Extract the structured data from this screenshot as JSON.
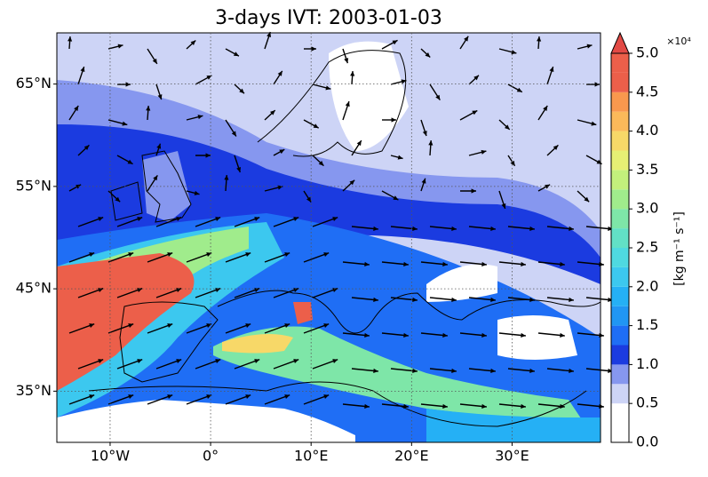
{
  "title": "3-days IVT: 2003-01-03",
  "map": {
    "xlim": [
      -15.3,
      38.8
    ],
    "ylim": [
      30,
      70
    ],
    "xticks": [
      {
        "value": -10,
        "label": "10°W"
      },
      {
        "value": 0,
        "label": "0°"
      },
      {
        "value": 10,
        "label": "10°E"
      },
      {
        "value": 20,
        "label": "20°E"
      },
      {
        "value": 30,
        "label": "30°E"
      }
    ],
    "yticks": [
      {
        "value": 35,
        "label": "35°N"
      },
      {
        "value": 45,
        "label": "45°N"
      },
      {
        "value": 55,
        "label": "55°N"
      },
      {
        "value": 65,
        "label": "65°N"
      }
    ],
    "grid": true
  },
  "colorbar": {
    "label": "[kg m⁻¹ s⁻¹]",
    "multiplier": "×10⁴",
    "lim": [
      0,
      5
    ],
    "ticks": [
      {
        "value": 0,
        "label": "0.0"
      },
      {
        "value": 0.5,
        "label": "0.5"
      },
      {
        "value": 1,
        "label": "1.0"
      },
      {
        "value": 1.5,
        "label": "1.5"
      },
      {
        "value": 2,
        "label": "2.0"
      },
      {
        "value": 2.5,
        "label": "2.5"
      },
      {
        "value": 3,
        "label": "3.0"
      },
      {
        "value": 3.5,
        "label": "3.5"
      },
      {
        "value": 4,
        "label": "4.0"
      },
      {
        "value": 4.5,
        "label": "4.5"
      },
      {
        "value": 5,
        "label": "5.0"
      }
    ],
    "colors": [
      "#ffffff",
      "#ffffff",
      "#cdd4f6",
      "#8697ef",
      "#1b3be0",
      "#1f6ef5",
      "#2196f3",
      "#25b0f5",
      "#3cc8ef",
      "#4fd9e0",
      "#62e0c6",
      "#7ee6a8",
      "#a0ec8c",
      "#c3f07c",
      "#e6ef74",
      "#f7d868",
      "#fbb95a",
      "#f9984e",
      "#ec5f4a",
      "#ec5f4a"
    ],
    "extend_color": "#e24a45"
  }
}
